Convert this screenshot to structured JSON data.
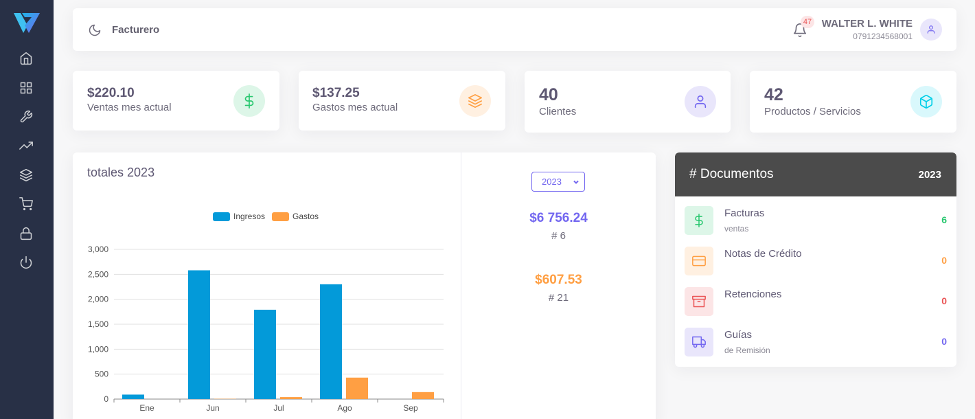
{
  "app": {
    "brand": "Facturero"
  },
  "colors": {
    "sidebar_bg": "#283046",
    "primary": "#7367f0",
    "success": "#28c76f",
    "warning": "#ff9f43",
    "danger": "#ea5455",
    "info": "#00cfe8",
    "ingresos": "#039ad9",
    "gastos": "#ff9f43"
  },
  "sidebar": {
    "items": [
      {
        "icon": "home-icon"
      },
      {
        "icon": "grid-icon"
      },
      {
        "icon": "tool-icon"
      },
      {
        "icon": "trending-up-icon"
      },
      {
        "icon": "layers-icon"
      },
      {
        "icon": "shopping-cart-icon"
      },
      {
        "icon": "lock-icon"
      },
      {
        "icon": "power-icon"
      }
    ]
  },
  "header": {
    "notifications_count": "47",
    "user_name": "WALTER L. WHITE",
    "user_id": "0791234568001"
  },
  "stats": [
    {
      "value": "$220.10",
      "label": "Ventas mes actual",
      "icon": "dollar-icon"
    },
    {
      "value": "$137.25",
      "label": "Gastos mes actual",
      "icon": "layers-icon"
    },
    {
      "value": "40",
      "label": "Clientes",
      "icon": "user-icon"
    },
    {
      "value": "42",
      "label": "Productos / Servicios",
      "icon": "box-icon"
    }
  ],
  "chart_card": {
    "title": "totales 2023",
    "year_selected": "2023",
    "ingresos_total": "$6 756.24",
    "ingresos_count": "# 6",
    "gastos_total": "$607.53",
    "gastos_count": "# 21"
  },
  "chart_data": {
    "type": "bar",
    "categories": [
      "Ene",
      "Jun",
      "Jul",
      "Ago",
      "Sep"
    ],
    "series": [
      {
        "name": "Ingresos",
        "values": [
          90,
          2580,
          1790,
          2300,
          0
        ]
      },
      {
        "name": "Gastos",
        "values": [
          0,
          5,
          40,
          430,
          140
        ]
      }
    ],
    "ylim": [
      0,
      3000
    ],
    "yticks": [
      0,
      500,
      1000,
      1500,
      2000,
      2500,
      3000
    ],
    "ytick_labels": [
      "0",
      "500",
      "1,000",
      "1,500",
      "2,000",
      "2,500",
      "3,000"
    ],
    "grid": true,
    "legend": "top-center"
  },
  "documents": {
    "title": "# Documentos",
    "year": "2023",
    "items": [
      {
        "name": "Facturas",
        "sub": "ventas",
        "count": "6",
        "icon": "dollar-icon"
      },
      {
        "name": "Notas de Crédito",
        "sub": "",
        "count": "0",
        "icon": "credit-card-icon"
      },
      {
        "name": "Retenciones",
        "sub": "",
        "count": "0",
        "icon": "archive-icon"
      },
      {
        "name": "Guías",
        "sub": "de Remisión",
        "count": "0",
        "icon": "truck-icon"
      }
    ]
  }
}
